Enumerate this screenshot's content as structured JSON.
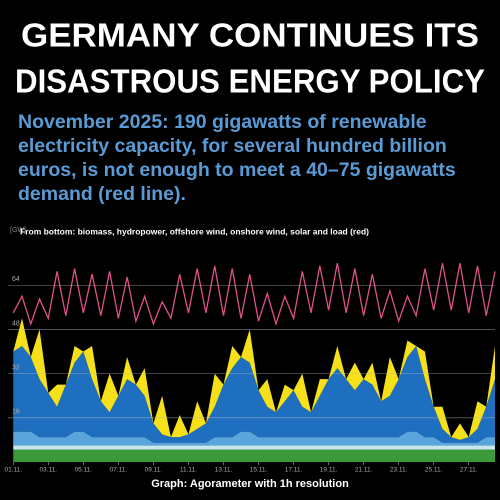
{
  "chart_data": {
    "type": "area",
    "stacked": true,
    "title": [
      "GERMANY CONTINUES ITS",
      "DISASTROUS ENERGY POLICY"
    ],
    "subtitle": "November 2025: 190 gigawatts of renewable electricity capacity, for several hundred billion euros, is not enough to meet a 40–75 gigawatts demand (red line).",
    "note": "From bottom: biomass, hydropower, offshore wind, onshore wind, solar and load (red)",
    "caption": "Graph: Agorameter with 1h resolution",
    "y_label": "[GW]",
    "grid": true,
    "x": [
      0,
      0.5,
      1,
      1.5,
      2,
      2.5,
      3,
      3.5,
      4,
      4.5,
      5,
      5.5,
      6,
      6.5,
      7,
      7.5,
      8,
      8.5,
      9,
      9.5,
      10,
      10.5,
      11,
      11.5,
      12,
      12.5,
      13,
      13.5,
      14,
      14.5,
      15,
      15.5,
      16,
      16.5,
      17,
      17.5,
      18,
      18.5,
      19,
      19.5,
      20,
      20.5,
      21,
      21.5,
      22,
      22.5,
      23,
      23.5,
      24,
      24.5,
      25,
      25.5,
      26,
      26.5,
      27,
      27.5
    ],
    "xlim": [
      -0.3,
      27.5
    ],
    "xticks": [
      {
        "value": 0,
        "label": "01.11."
      },
      {
        "value": 2,
        "label": "03.11."
      },
      {
        "value": 4,
        "label": "05.11."
      },
      {
        "value": 6,
        "label": "07.11."
      },
      {
        "value": 8,
        "label": "09.11."
      },
      {
        "value": 10,
        "label": "11.11."
      },
      {
        "value": 12,
        "label": "13.11."
      },
      {
        "value": 14,
        "label": "15.11."
      },
      {
        "value": 16,
        "label": "17.11."
      },
      {
        "value": 18,
        "label": "19.11."
      },
      {
        "value": 20,
        "label": "21.11."
      },
      {
        "value": 22,
        "label": "23.11."
      },
      {
        "value": 24,
        "label": "25.11."
      },
      {
        "value": 26,
        "label": "27.11."
      }
    ],
    "ylim": [
      0,
      84
    ],
    "yticks": [
      16,
      32,
      48,
      64
    ],
    "series": [
      {
        "color": "#3a9a3a",
        "values": [
          4.5,
          4.5,
          4.5,
          4.5,
          4.5,
          4.5,
          4.5,
          4.5,
          4.5,
          4.5,
          4.5,
          4.5,
          4.5,
          4.5,
          4.5,
          4.5,
          4.5,
          4.5,
          4.5,
          4.5,
          4.5,
          4.5,
          4.5,
          4.5,
          4.5,
          4.5,
          4.5,
          4.5,
          4.5,
          4.5,
          4.5,
          4.5,
          4.5,
          4.5,
          4.5,
          4.5,
          4.5,
          4.5,
          4.5,
          4.5,
          4.5,
          4.5,
          4.5,
          4.5,
          4.5,
          4.5,
          4.5,
          4.5,
          4.5,
          4.5,
          4.5,
          4.5,
          4.5,
          4.5,
          4.5,
          4.5
        ]
      },
      {
        "color": "#c8e8ee",
        "values": [
          1.5,
          1.5,
          1.5,
          1.5,
          1.5,
          1.5,
          1.5,
          1.5,
          1.5,
          1.5,
          1.5,
          1.5,
          1.5,
          1.5,
          1.5,
          1.5,
          1.5,
          1.5,
          1.5,
          1.5,
          1.5,
          1.5,
          1.5,
          1.5,
          1.5,
          1.5,
          1.5,
          1.5,
          1.5,
          1.5,
          1.5,
          1.5,
          1.5,
          1.5,
          1.5,
          1.5,
          1.5,
          1.5,
          1.5,
          1.5,
          1.5,
          1.5,
          1.5,
          1.5,
          1.5,
          1.5,
          1.5,
          1.5,
          1.5,
          1.5,
          1.5,
          1.5,
          1.5,
          1.5,
          1.5,
          1.5
        ]
      },
      {
        "color": "#5aa6dc",
        "values": [
          5,
          5,
          5,
          3,
          3,
          3,
          3,
          5,
          5,
          3,
          3,
          3,
          3,
          3,
          3,
          3,
          1,
          1,
          1,
          1,
          1,
          1,
          1,
          3,
          3,
          3,
          5,
          5,
          3,
          3,
          3,
          3,
          3,
          3,
          3,
          3,
          3,
          3,
          3,
          3,
          3,
          3,
          3,
          3,
          3,
          5,
          5,
          3,
          3,
          1,
          1,
          1,
          1,
          1,
          3,
          3
        ]
      },
      {
        "color": "#1f6fc0",
        "values": [
          29,
          31,
          27,
          21,
          16,
          11,
          19,
          25,
          29,
          21,
          13,
          9,
          15,
          21,
          19,
          15,
          7,
          3,
          2,
          2,
          3,
          5,
          7,
          11,
          19,
          25,
          27,
          25,
          17,
          11,
          9,
          13,
          17,
          11,
          9,
          15,
          21,
          25,
          21,
          17,
          21,
          19,
          13,
          15,
          21,
          27,
          31,
          21,
          11,
          5,
          2,
          1,
          2,
          5,
          11,
          21
        ]
      },
      {
        "color": "#f5e01a",
        "values": [
          0,
          10,
          0,
          18,
          0,
          8,
          0,
          6,
          0,
          12,
          0,
          14,
          0,
          8,
          0,
          10,
          0,
          14,
          0,
          8,
          0,
          10,
          0,
          12,
          0,
          8,
          0,
          12,
          0,
          10,
          0,
          6,
          0,
          12,
          0,
          6,
          0,
          8,
          0,
          10,
          0,
          8,
          0,
          14,
          0,
          6,
          0,
          10,
          0,
          8,
          0,
          6,
          0,
          10,
          0,
          12
        ]
      },
      {
        "type": "line",
        "color": "#e0508c",
        "values": [
          54,
          60,
          50,
          59,
          52,
          69,
          53,
          70,
          54,
          68,
          53,
          69,
          52,
          67,
          51,
          60,
          50,
          58,
          52,
          68,
          54,
          70,
          54,
          71,
          53,
          70,
          52,
          68,
          51,
          61,
          50,
          60,
          52,
          69,
          54,
          71,
          55,
          72,
          54,
          70,
          53,
          68,
          52,
          62,
          51,
          60,
          53,
          70,
          55,
          72,
          55,
          72,
          54,
          71,
          53,
          69
        ]
      }
    ]
  }
}
